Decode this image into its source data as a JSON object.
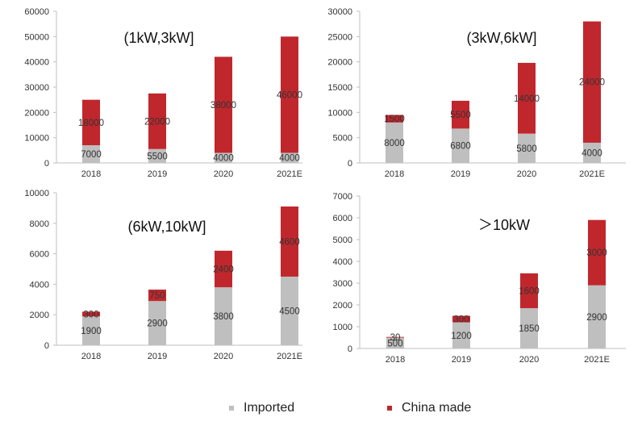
{
  "colors": {
    "imported": "#bfbfbf",
    "china_made": "#c0272d"
  },
  "legend": {
    "imported": "Imported",
    "china_made": "China made"
  },
  "chart_data": [
    {
      "type": "bar",
      "stacked": true,
      "title": "(1kW,3kW]",
      "categories": [
        "2018",
        "2019",
        "2020",
        "2021E"
      ],
      "ylim": [
        0,
        60000
      ],
      "yticks": [
        0,
        10000,
        20000,
        30000,
        40000,
        50000,
        60000
      ],
      "series": [
        {
          "name": "Imported",
          "values": [
            7000,
            5500,
            4000,
            4000
          ]
        },
        {
          "name": "China made",
          "values": [
            18000,
            22000,
            38000,
            46000
          ]
        }
      ]
    },
    {
      "type": "bar",
      "stacked": true,
      "title": "(3kW,6kW]",
      "categories": [
        "2018",
        "2019",
        "2020",
        "2021E"
      ],
      "ylim": [
        0,
        30000
      ],
      "yticks": [
        0,
        5000,
        10000,
        15000,
        20000,
        25000,
        30000
      ],
      "series": [
        {
          "name": "Imported",
          "values": [
            8000,
            6800,
            5800,
            4000
          ]
        },
        {
          "name": "China made",
          "values": [
            1500,
            5500,
            14000,
            24000
          ]
        }
      ]
    },
    {
      "type": "bar",
      "stacked": true,
      "title": "(6kW,10kW]",
      "categories": [
        "2018",
        "2019",
        "2020",
        "2021E"
      ],
      "ylim": [
        0,
        10000
      ],
      "yticks": [
        0,
        2000,
        4000,
        6000,
        8000,
        10000
      ],
      "series": [
        {
          "name": "Imported",
          "values": [
            1900,
            2900,
            3800,
            4500
          ]
        },
        {
          "name": "China made",
          "values": [
            300,
            750,
            2400,
            4600
          ]
        }
      ]
    },
    {
      "type": "bar",
      "stacked": true,
      "title": "＞10kW",
      "categories": [
        "2018",
        "2019",
        "2020",
        "2021E"
      ],
      "ylim": [
        0,
        7000
      ],
      "yticks": [
        0,
        1000,
        2000,
        3000,
        4000,
        5000,
        6000,
        7000
      ],
      "series": [
        {
          "name": "Imported",
          "values": [
            500,
            1200,
            1850,
            2900
          ]
        },
        {
          "name": "China made",
          "values": [
            30,
            300,
            1600,
            3000
          ]
        }
      ]
    }
  ]
}
